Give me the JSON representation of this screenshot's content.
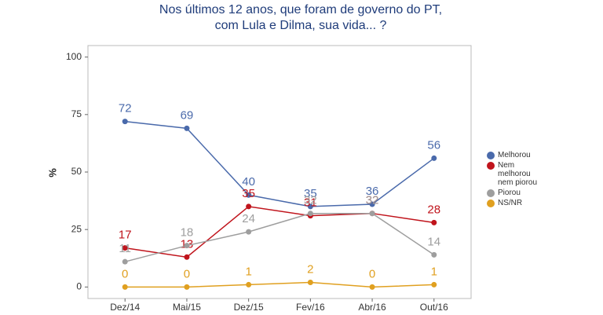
{
  "chart_data": {
    "type": "line",
    "title": [
      "Nos últimos 12 anos, que foram de governo do PT,",
      "com Lula e Dilma, sua vida... ?"
    ],
    "y_label": "%",
    "categories": [
      "Dez/14",
      "Mai/15",
      "Dez/15",
      "Fev/16",
      "Abr/16",
      "Out/16"
    ],
    "series": [
      {
        "name": "Melhorou",
        "color": "#4a6aab",
        "values": [
          72,
          69,
          40,
          35,
          36,
          56
        ]
      },
      {
        "name": "Nem melhorou nem piorou",
        "color": "#c0141c",
        "values": [
          17,
          13,
          35,
          31,
          32,
          28
        ]
      },
      {
        "name": "Piorou",
        "color": "#9e9e9e",
        "values": [
          11,
          18,
          24,
          32,
          32,
          14
        ]
      },
      {
        "name": "NS/NR",
        "color": "#e0a020",
        "values": [
          0,
          0,
          1,
          2,
          0,
          1
        ]
      }
    ],
    "ylim": [
      -5,
      105
    ],
    "yticks": [
      0,
      25,
      50,
      75,
      100
    ],
    "grid": false,
    "legend": "right"
  }
}
